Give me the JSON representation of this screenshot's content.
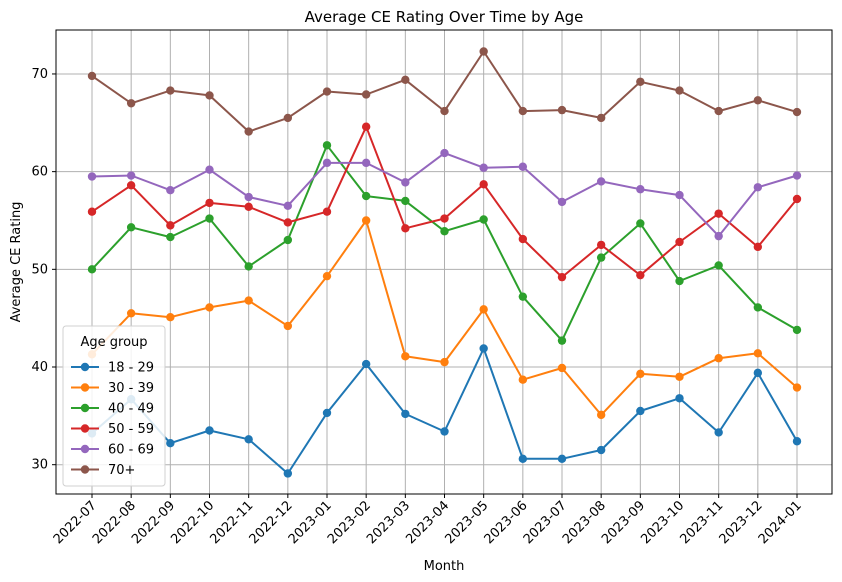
{
  "chart_data": {
    "type": "line",
    "title": "Average CE Rating Over Time by Age",
    "xlabel": "Month",
    "ylabel": "Average CE Rating",
    "ylim": [
      27,
      74.5
    ],
    "yticks": [
      30,
      40,
      50,
      60,
      70
    ],
    "grid": true,
    "legend_title": "Age group",
    "legend_position": "lower-left",
    "categories": [
      "2022-07",
      "2022-08",
      "2022-09",
      "2022-10",
      "2022-11",
      "2022-12",
      "2023-01",
      "2023-02",
      "2023-03",
      "2023-04",
      "2023-05",
      "2023-06",
      "2023-07",
      "2023-08",
      "2023-09",
      "2023-10",
      "2023-11",
      "2023-12",
      "2024-01"
    ],
    "series": [
      {
        "name": "18 - 29",
        "color": "#1f77b4",
        "values": [
          33.2,
          36.7,
          32.2,
          33.5,
          32.6,
          29.1,
          35.3,
          40.3,
          35.2,
          33.4,
          41.9,
          30.6,
          30.6,
          31.5,
          35.5,
          36.8,
          33.3,
          39.4,
          32.4
        ]
      },
      {
        "name": "30 - 39",
        "color": "#ff7f0e",
        "values": [
          41.3,
          45.5,
          45.1,
          46.1,
          46.8,
          44.2,
          49.3,
          55.0,
          41.1,
          40.5,
          45.9,
          38.7,
          39.9,
          35.1,
          39.3,
          39.0,
          40.9,
          41.4,
          37.9
        ]
      },
      {
        "name": "40 - 49",
        "color": "#2ca02c",
        "values": [
          50.0,
          54.3,
          53.3,
          55.2,
          50.3,
          53.0,
          62.7,
          57.5,
          57.0,
          53.9,
          55.1,
          47.2,
          42.7,
          51.2,
          54.7,
          48.8,
          50.4,
          46.1,
          43.8
        ]
      },
      {
        "name": "50 - 59",
        "color": "#d62728",
        "values": [
          55.9,
          58.6,
          54.5,
          56.8,
          56.4,
          54.8,
          55.9,
          64.6,
          54.2,
          55.2,
          58.7,
          53.1,
          49.2,
          52.5,
          49.4,
          52.8,
          55.7,
          52.3,
          57.2
        ]
      },
      {
        "name": "60 - 69",
        "color": "#9467bd",
        "values": [
          59.5,
          59.6,
          58.1,
          60.2,
          57.4,
          56.5,
          60.9,
          60.9,
          58.9,
          61.9,
          60.4,
          60.5,
          56.9,
          59.0,
          58.2,
          57.6,
          53.4,
          58.4,
          59.6
        ]
      },
      {
        "name": "70+",
        "color": "#8c564b",
        "values": [
          69.8,
          67.0,
          68.3,
          67.8,
          64.1,
          65.5,
          68.2,
          67.9,
          69.4,
          66.2,
          72.3,
          66.2,
          66.3,
          65.5,
          69.2,
          68.3,
          66.2,
          67.3,
          66.1
        ]
      }
    ]
  }
}
